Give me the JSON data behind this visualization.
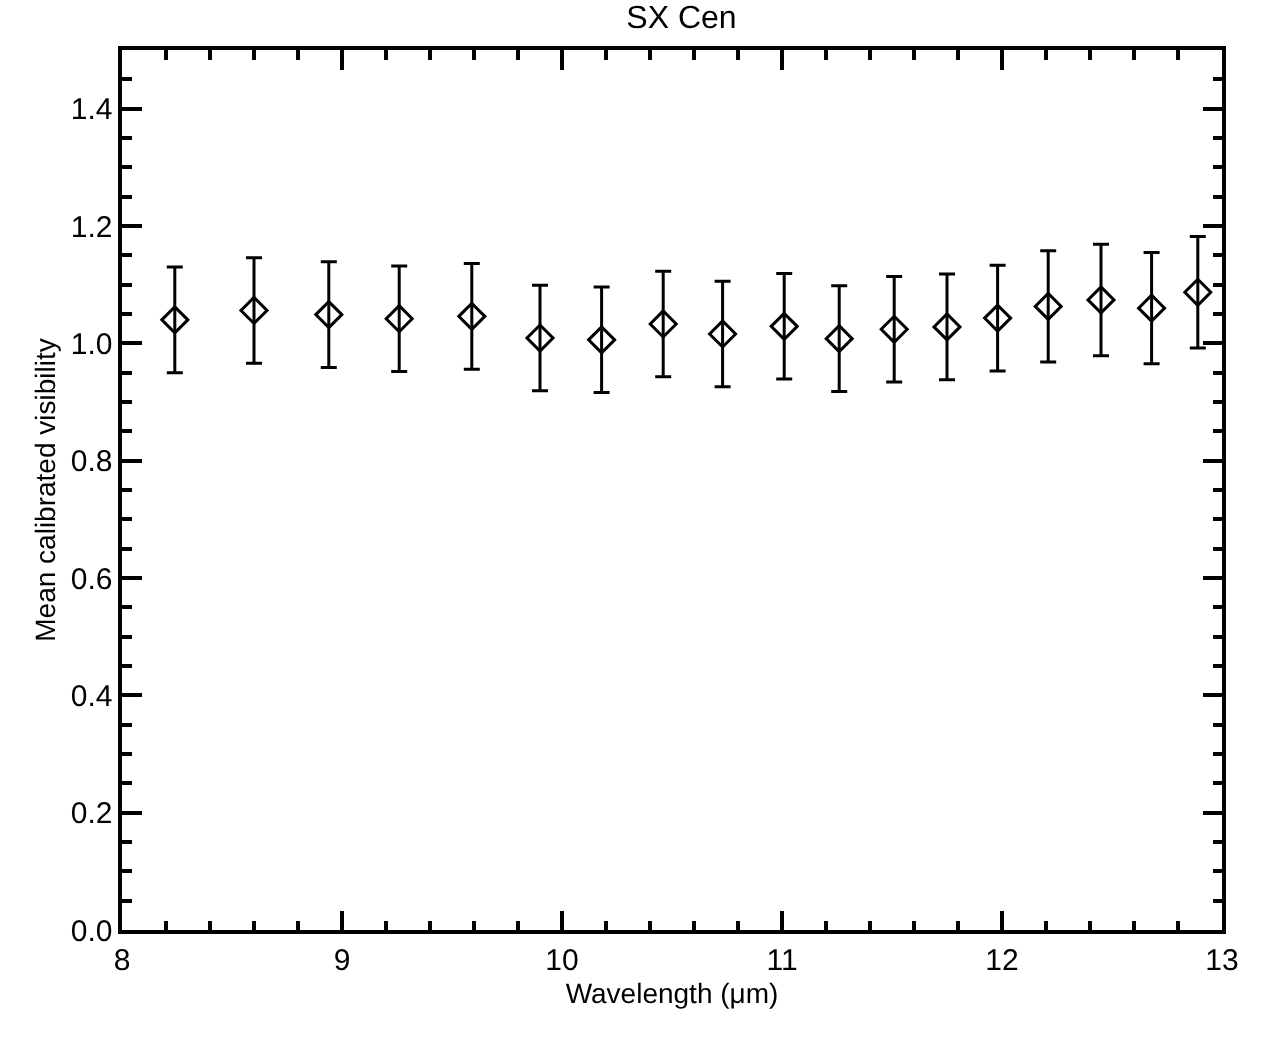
{
  "chart_data": {
    "type": "scatter",
    "title": "SX Cen",
    "xlabel": "Wavelength (μm)",
    "ylabel": "Mean calibrated visibility",
    "x": [
      8.24,
      8.6,
      8.94,
      9.26,
      9.59,
      9.9,
      10.18,
      10.46,
      10.73,
      11.01,
      11.26,
      11.51,
      11.75,
      11.98,
      12.21,
      12.45,
      12.68,
      12.89
    ],
    "series": [
      {
        "color": "#000000",
        "values": [
          1.04,
          1.056,
          1.049,
          1.042,
          1.046,
          1.009,
          1.006,
          1.033,
          1.016,
          1.029,
          1.008,
          1.024,
          1.028,
          1.043,
          1.063,
          1.074,
          1.06,
          1.087
        ],
        "errors": [
          0.09,
          0.09,
          0.09,
          0.09,
          0.09,
          0.09,
          0.09,
          0.09,
          0.09,
          0.09,
          0.09,
          0.09,
          0.09,
          0.09,
          0.095,
          0.095,
          0.095,
          0.095
        ]
      }
    ],
    "marker": "diamond",
    "grid": false,
    "xlim": [
      8,
      13
    ],
    "ylim": [
      0,
      1.5
    ],
    "xticks": [
      8,
      {
        "value": 8.2,
        "label": null
      },
      {
        "value": 8.4,
        "label": null
      },
      {
        "value": 8.6,
        "label": null
      },
      {
        "value": 8.8,
        "label": null
      },
      9,
      {
        "value": 9.2,
        "label": null
      },
      {
        "value": 9.4,
        "label": null
      },
      {
        "value": 9.6,
        "label": null
      },
      {
        "value": 9.8,
        "label": null
      },
      10,
      {
        "value": 10.2,
        "label": null
      },
      {
        "value": 10.4,
        "label": null
      },
      {
        "value": 10.6,
        "label": null
      },
      {
        "value": 10.8,
        "label": null
      },
      11,
      {
        "value": 11.2,
        "label": null
      },
      {
        "value": 11.4,
        "label": null
      },
      {
        "value": 11.6,
        "label": null
      },
      {
        "value": 11.8,
        "label": null
      },
      12,
      {
        "value": 12.2,
        "label": null
      },
      {
        "value": 12.4,
        "label": null
      },
      {
        "value": 12.6,
        "label": null
      },
      {
        "value": 12.8,
        "label": null
      },
      13
    ],
    "yticks": [
      {
        "value": 0,
        "label": "0.0"
      },
      {
        "value": 0.05,
        "label": null
      },
      {
        "value": 0.1,
        "label": null
      },
      {
        "value": 0.15,
        "label": null
      },
      0.2,
      {
        "value": 0.25,
        "label": null
      },
      {
        "value": 0.3,
        "label": null
      },
      {
        "value": 0.35,
        "label": null
      },
      0.4,
      {
        "value": 0.45,
        "label": null
      },
      {
        "value": 0.5,
        "label": null
      },
      {
        "value": 0.55,
        "label": null
      },
      0.6,
      {
        "value": 0.65,
        "label": null
      },
      {
        "value": 0.7,
        "label": null
      },
      {
        "value": 0.75,
        "label": null
      },
      0.8,
      {
        "value": 0.85,
        "label": null
      },
      {
        "value": 0.9,
        "label": null
      },
      {
        "value": 0.95,
        "label": null
      },
      {
        "value": 1,
        "label": "1.0"
      },
      {
        "value": 1.05,
        "label": null
      },
      {
        "value": 1.1,
        "label": null
      },
      {
        "value": 1.15,
        "label": null
      },
      1.2,
      {
        "value": 1.25,
        "label": null
      },
      {
        "value": 1.3,
        "label": null
      },
      {
        "value": 1.35,
        "label": null
      },
      1.4,
      {
        "value": 1.45,
        "label": null
      }
    ]
  }
}
